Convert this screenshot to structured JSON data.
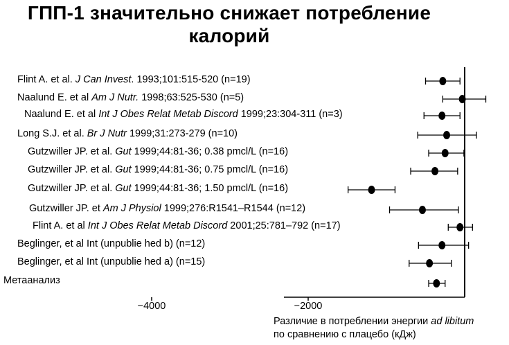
{
  "chart_data": {
    "type": "forest",
    "title_line1": "ГПП-1 значительно снижает потребление",
    "title_line2": "калорий",
    "xlabel_line1_prefix": "Различие в потреблении энергии ",
    "xlabel_line1_italic": "ad libitum",
    "xlabel_line2": "по сравнению с плацебо (кДж)",
    "xticks": [
      -4000,
      -2000
    ],
    "xtick_labels": [
      "−4000",
      "−2000"
    ],
    "xlim": [
      -4300,
      100
    ],
    "studies": [
      {
        "pre": "Flint A. et al. ",
        "journal": "J Can Invest",
        "post": ". 1993;101:515-520 (n=19)",
        "mean": -280,
        "lo": -500,
        "hi": -60
      },
      {
        "pre": "Naalund E. et al ",
        "journal": "Am J Nutr.",
        "post": " 1998;63:525-530 (n=5)",
        "mean": -30,
        "lo": -280,
        "hi": 270
      },
      {
        "pre": "Naalund E. et al ",
        "journal": "Int J Obes Relat Metab Discord",
        "post": " 1999;23:304-311 (n=3)",
        "mean": -290,
        "lo": -520,
        "hi": -60
      },
      {
        "pre": "Long S.J. et al. ",
        "journal": "Br J Nutr",
        "post": " 1999;31:273-279 (n=10)",
        "mean": -230,
        "lo": -600,
        "hi": 150
      },
      {
        "pre": "Gutzwiller JP. et al. ",
        "journal": "Gut",
        "post": " 1999;44:81-36; 0.38 pmcl/L (n=16)",
        "mean": -250,
        "lo": -460,
        "hi": -10
      },
      {
        "pre": "Gutzwiller JP. et al. ",
        "journal": "Gut",
        "post": " 1999;44:81-36; 0.75 pmcl/L (n=16)",
        "mean": -380,
        "lo": -690,
        "hi": -90
      },
      {
        "pre": "Gutzwiller JP. et al. ",
        "journal": "Gut",
        "post": " 1999;44:81-36; 1.50 pmcl/L (n=16)",
        "mean": -1190,
        "lo": -1490,
        "hi": -890
      },
      {
        "pre": "Gutzwiller JP. et ",
        "journal": "Am J Physiol",
        "post": " 1999;276:R1541–R1544 (n=12)",
        "mean": -540,
        "lo": -960,
        "hi": -80
      },
      {
        "pre": "Flint A. et al ",
        "journal": "Int J Obes Relat Metab Discord",
        "post": " 2001;25:781–792 (n=17)",
        "mean": -60,
        "lo": -210,
        "hi": 100
      },
      {
        "pre": "Beglinger, et al Int (unpublie hed b) (n=12)",
        "journal": "",
        "post": "",
        "mean": -290,
        "lo": -590,
        "hi": 50
      },
      {
        "pre": "Beglinger, et al Int (unpublie hed a) (n=15)",
        "journal": "",
        "post": "",
        "mean": -450,
        "lo": -710,
        "hi": -170
      }
    ],
    "meta": {
      "label": "Метаанализ",
      "mean": -360,
      "lo": -460,
      "hi": -250
    },
    "zero_line": 0
  }
}
